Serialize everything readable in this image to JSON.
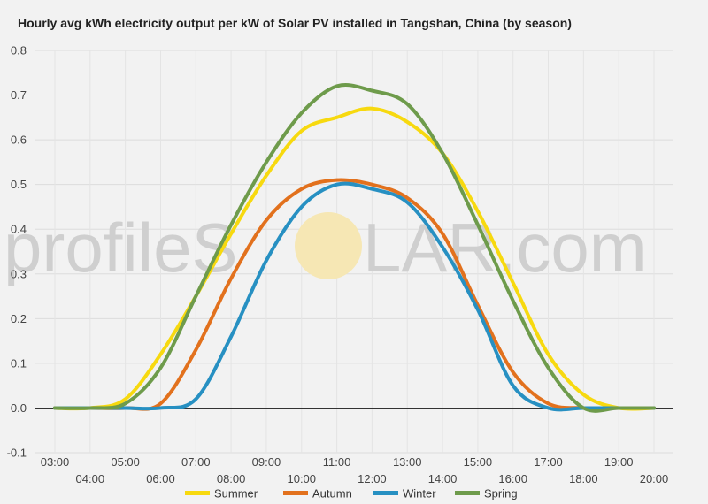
{
  "chart_data": {
    "type": "line",
    "title": "Hourly avg kWh electricity output per kW of Solar PV installed in Tangshan, China (by season)",
    "xlabel": "",
    "ylabel": "",
    "ylim": [
      -0.1,
      0.8
    ],
    "yticks": [
      "-0.1",
      "0.0",
      "0.1",
      "0.2",
      "0.3",
      "0.4",
      "0.5",
      "0.6",
      "0.7",
      "0.8"
    ],
    "x": [
      "03:00",
      "04:00",
      "05:00",
      "06:00",
      "07:00",
      "08:00",
      "09:00",
      "10:00",
      "11:00",
      "12:00",
      "13:00",
      "14:00",
      "15:00",
      "16:00",
      "17:00",
      "18:00",
      "19:00",
      "20:00"
    ],
    "grid": true,
    "legend_position": "bottom",
    "series": [
      {
        "name": "Summer",
        "color": "#f7d90f",
        "values": [
          0.0,
          0.0,
          0.02,
          0.12,
          0.25,
          0.39,
          0.52,
          0.62,
          0.65,
          0.67,
          0.64,
          0.57,
          0.44,
          0.28,
          0.12,
          0.03,
          0.0,
          0.0
        ]
      },
      {
        "name": "Autumn",
        "color": "#e2711d",
        "values": [
          0.0,
          0.0,
          0.0,
          0.01,
          0.13,
          0.29,
          0.42,
          0.49,
          0.51,
          0.5,
          0.47,
          0.39,
          0.23,
          0.08,
          0.01,
          0.0,
          0.0,
          0.0
        ]
      },
      {
        "name": "Winter",
        "color": "#2790c2",
        "values": [
          0.0,
          0.0,
          0.0,
          0.0,
          0.02,
          0.16,
          0.33,
          0.45,
          0.5,
          0.49,
          0.46,
          0.36,
          0.22,
          0.05,
          0.0,
          0.0,
          0.0,
          0.0
        ]
      },
      {
        "name": "Spring",
        "color": "#6e9b4b",
        "values": [
          0.0,
          0.0,
          0.01,
          0.09,
          0.25,
          0.41,
          0.55,
          0.66,
          0.72,
          0.71,
          0.68,
          0.57,
          0.41,
          0.24,
          0.09,
          0.0,
          0.0,
          0.0
        ]
      }
    ]
  },
  "watermark": {
    "text_left": "profileS",
    "text_right": "LAR.com",
    "sun_color": "#f6e7b4"
  }
}
